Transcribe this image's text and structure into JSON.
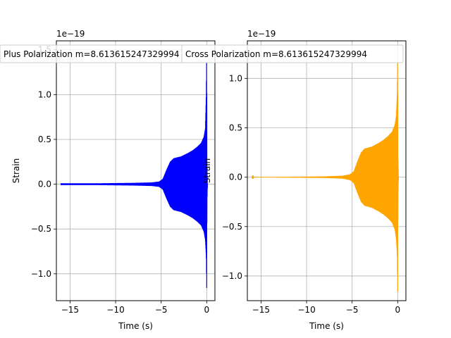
{
  "chart_data": [
    {
      "type": "line",
      "title": "Plus Polarization m=8.613615247329994",
      "xlabel": "Time (s)",
      "ylabel": "Strain",
      "offset_text": "1e−19",
      "xlim": [
        -16.5,
        0.9
      ],
      "ylim": [
        -1.3,
        1.6
      ],
      "xticks": [
        -15,
        -10,
        -5,
        0
      ],
      "xtick_labels": [
        "−15",
        "−10",
        "−5",
        "0"
      ],
      "yticks": [
        -1.0,
        -0.5,
        0.0,
        0.5,
        1.0,
        1.5
      ],
      "ytick_labels": [
        "−1.0",
        "−0.5",
        "0.0",
        "0.5",
        "1.0",
        "1.5"
      ],
      "grid": true,
      "series": [
        {
          "color": "#0000ff",
          "envelope": {
            "t": [
              -16.0,
              -12.0,
              -8.0,
              -6.0,
              -5.2,
              -4.8,
              -4.4,
              -4.0,
              -3.6,
              -3.2,
              -2.8,
              -2.0,
              -1.5,
              -1.0,
              -0.6,
              -0.3,
              -0.15,
              -0.05,
              0.0,
              0.03,
              0.08
            ],
            "upper": [
              0.01,
              0.01,
              0.015,
              0.02,
              0.03,
              0.06,
              0.16,
              0.25,
              0.29,
              0.3,
              0.31,
              0.35,
              0.38,
              0.42,
              0.46,
              0.53,
              0.62,
              1.0,
              1.5,
              0.2,
              0.0
            ],
            "lower": [
              -0.01,
              -0.01,
              -0.015,
              -0.02,
              -0.03,
              -0.06,
              -0.16,
              -0.25,
              -0.29,
              -0.3,
              -0.31,
              -0.35,
              -0.38,
              -0.42,
              -0.46,
              -0.53,
              -0.62,
              -0.8,
              -1.16,
              -0.2,
              0.0
            ]
          }
        }
      ]
    },
    {
      "type": "line",
      "title": "Cross Polarization m=8.613615247329994",
      "xlabel": "Time (s)",
      "ylabel": "Strain",
      "offset_text": "1e−19",
      "xlim": [
        -16.5,
        0.9
      ],
      "ylim": [
        -1.25,
        1.38
      ],
      "xticks": [
        -15,
        -10,
        -5,
        0
      ],
      "xtick_labels": [
        "−15",
        "−10",
        "−5",
        "0"
      ],
      "yticks": [
        -1.0,
        -0.5,
        0.0,
        0.5,
        1.0
      ],
      "ytick_labels": [
        "−1.0",
        "−0.5",
        "0.0",
        "0.5",
        "1.0"
      ],
      "grid": true,
      "series": [
        {
          "color": "#ffa500",
          "envelope": {
            "t": [
              -16.0,
              -12.0,
              -8.0,
              -6.0,
              -5.2,
              -4.8,
              -4.4,
              -4.0,
              -3.6,
              -3.2,
              -2.8,
              -2.0,
              -1.5,
              -1.0,
              -0.6,
              -0.3,
              -0.15,
              -0.05,
              0.0,
              0.03,
              0.08
            ],
            "upper": [
              0.002,
              0.004,
              0.008,
              0.015,
              0.03,
              0.06,
              0.16,
              0.25,
              0.29,
              0.3,
              0.31,
              0.35,
              0.38,
              0.42,
              0.46,
              0.53,
              0.62,
              0.85,
              1.25,
              0.2,
              0.0
            ],
            "lower": [
              -0.002,
              -0.004,
              -0.008,
              -0.015,
              -0.03,
              -0.06,
              -0.16,
              -0.25,
              -0.29,
              -0.3,
              -0.31,
              -0.35,
              -0.38,
              -0.42,
              -0.46,
              -0.53,
              -0.62,
              -0.78,
              -1.16,
              -0.2,
              0.0
            ]
          }
        }
      ]
    }
  ]
}
